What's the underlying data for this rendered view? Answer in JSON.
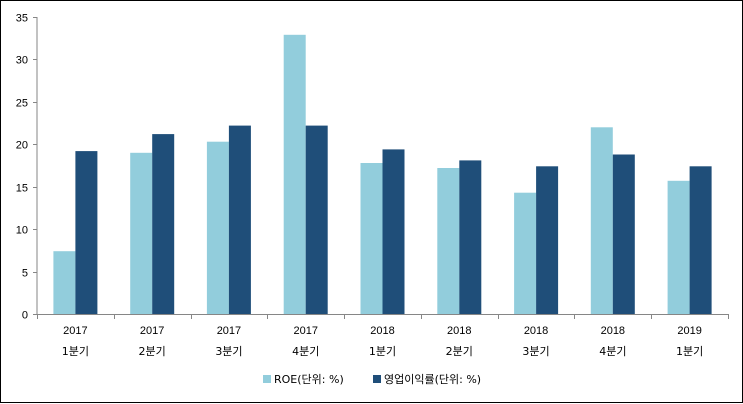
{
  "chart_data": {
    "type": "bar",
    "categories": [
      [
        "2017",
        "1분기"
      ],
      [
        "2017",
        "2분기"
      ],
      [
        "2017",
        "3분기"
      ],
      [
        "2017",
        "4분기"
      ],
      [
        "2018",
        "1분기"
      ],
      [
        "2018",
        "2분기"
      ],
      [
        "2018",
        "3분기"
      ],
      [
        "2018",
        "4분기"
      ],
      [
        "2019",
        "1분기"
      ]
    ],
    "series": [
      {
        "name": "ROE(단위: %)",
        "color": "#92CDDC",
        "values": [
          7.4,
          19.0,
          20.3,
          32.9,
          17.8,
          17.2,
          14.3,
          22.0,
          15.7
        ]
      },
      {
        "name": "영업이익률(단위: %)",
        "color": "#1F4E79",
        "values": [
          19.2,
          21.2,
          22.2,
          22.2,
          19.4,
          18.1,
          17.4,
          18.8,
          17.4
        ]
      }
    ],
    "ylim": [
      0,
      35
    ],
    "yticks": [
      0,
      5,
      10,
      15,
      20,
      25,
      30,
      35
    ],
    "grid": false,
    "legend_position": "bottom"
  }
}
